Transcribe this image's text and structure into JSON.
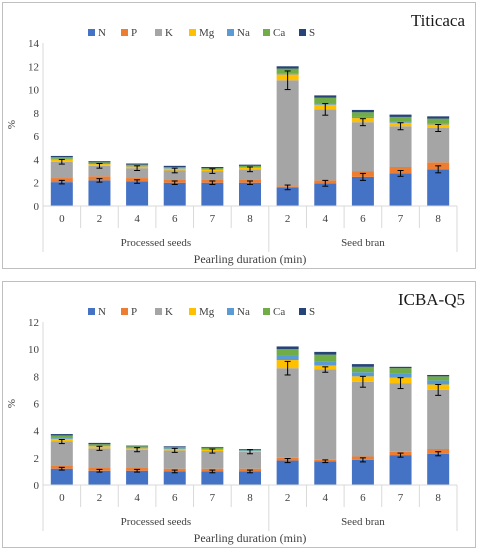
{
  "legend": [
    "N",
    "P",
    "K",
    "Mg",
    "Na",
    "Ca",
    "S"
  ],
  "colors": {
    "N": "#4472c4",
    "P": "#ed7d31",
    "K": "#a5a5a5",
    "Mg": "#ffc000",
    "Na": "#5b9bd5",
    "Ca": "#70ad47",
    "S": "#264478"
  },
  "chart_data": [
    {
      "type": "bar",
      "stacked": true,
      "title": "Titicaca",
      "xlabel": "Pearling duration (min)",
      "ylabel": "%",
      "ylim": [
        0,
        14
      ],
      "yticks": [
        0,
        2,
        4,
        6,
        8,
        10,
        12,
        14
      ],
      "group_labels": [
        "Processed seeds",
        "Seed bran"
      ],
      "categories": [
        "0",
        "2",
        "4",
        "6",
        "7",
        "8",
        "2",
        "4",
        "6",
        "7",
        "8"
      ],
      "series": [
        {
          "name": "N",
          "values": [
            2.05,
            2.2,
            2.1,
            2.0,
            2.0,
            2.0,
            1.6,
            1.95,
            2.5,
            2.8,
            3.15
          ]
        },
        {
          "name": "P",
          "values": [
            0.35,
            0.35,
            0.3,
            0.3,
            0.3,
            0.3,
            0.1,
            0.25,
            0.5,
            0.55,
            0.6
          ]
        },
        {
          "name": "K",
          "values": [
            1.4,
            0.9,
            0.85,
            0.75,
            0.7,
            0.85,
            9.1,
            6.1,
            4.2,
            3.5,
            2.95
          ]
        },
        {
          "name": "Mg",
          "values": [
            0.2,
            0.15,
            0.15,
            0.15,
            0.1,
            0.15,
            0.5,
            0.4,
            0.35,
            0.3,
            0.3
          ]
        },
        {
          "name": "Na",
          "values": [
            0.05,
            0.05,
            0.05,
            0.05,
            0.05,
            0.05,
            0.1,
            0.1,
            0.1,
            0.1,
            0.1
          ]
        },
        {
          "name": "Ca",
          "values": [
            0.15,
            0.1,
            0.1,
            0.1,
            0.1,
            0.1,
            0.4,
            0.5,
            0.4,
            0.4,
            0.4
          ]
        },
        {
          "name": "S",
          "values": [
            0.1,
            0.1,
            0.1,
            0.1,
            0.1,
            0.1,
            0.2,
            0.2,
            0.2,
            0.2,
            0.2
          ]
        }
      ],
      "error_bars": {
        "N": [
          0.15,
          0.15,
          0.15,
          0.15,
          0.15,
          0.15,
          0.2,
          0.25,
          0.3,
          0.25,
          0.3
        ],
        "K": [
          0.2,
          0.2,
          0.2,
          0.2,
          0.2,
          0.2,
          0.8,
          0.5,
          0.3,
          0.3,
          0.3
        ]
      }
    },
    {
      "type": "bar",
      "stacked": true,
      "title": "ICBA-Q5",
      "xlabel": "Pearling duration (min)",
      "ylabel": "%",
      "ylim": [
        0,
        12
      ],
      "yticks": [
        0,
        2,
        4,
        6,
        8,
        10,
        12
      ],
      "group_labels": [
        "Processed seeds",
        "Seed bran"
      ],
      "categories": [
        "0",
        "2",
        "4",
        "6",
        "7",
        "8",
        "2",
        "4",
        "6",
        "7",
        "8"
      ],
      "series": [
        {
          "name": "N",
          "values": [
            1.2,
            1.05,
            1.05,
            1.0,
            1.0,
            1.0,
            1.8,
            1.75,
            1.85,
            2.2,
            2.3
          ]
        },
        {
          "name": "P",
          "values": [
            0.2,
            0.2,
            0.2,
            0.2,
            0.2,
            0.2,
            0.2,
            0.1,
            0.25,
            0.25,
            0.35
          ]
        },
        {
          "name": "K",
          "values": [
            1.8,
            1.45,
            1.35,
            1.35,
            1.3,
            1.25,
            6.6,
            6.65,
            5.5,
            5.05,
            4.35
          ]
        },
        {
          "name": "Mg",
          "values": [
            0.2,
            0.15,
            0.1,
            0.1,
            0.1,
            0.05,
            0.6,
            0.3,
            0.4,
            0.4,
            0.4
          ]
        },
        {
          "name": "Na",
          "values": [
            0.1,
            0.05,
            0.05,
            0.05,
            0.05,
            0.05,
            0.3,
            0.3,
            0.3,
            0.3,
            0.3
          ]
        },
        {
          "name": "Ca",
          "values": [
            0.15,
            0.1,
            0.1,
            0.1,
            0.1,
            0.05,
            0.5,
            0.5,
            0.4,
            0.4,
            0.3
          ]
        },
        {
          "name": "S",
          "values": [
            0.1,
            0.1,
            0.05,
            0.05,
            0.05,
            0.05,
            0.2,
            0.2,
            0.2,
            0.1,
            0.1
          ]
        }
      ],
      "error_bars": {
        "N": [
          0.1,
          0.1,
          0.1,
          0.1,
          0.1,
          0.1,
          0.15,
          0.1,
          0.15,
          0.15,
          0.15
        ],
        "K": [
          0.15,
          0.15,
          0.15,
          0.15,
          0.15,
          0.15,
          0.5,
          0.2,
          0.4,
          0.4,
          0.4
        ]
      }
    }
  ]
}
